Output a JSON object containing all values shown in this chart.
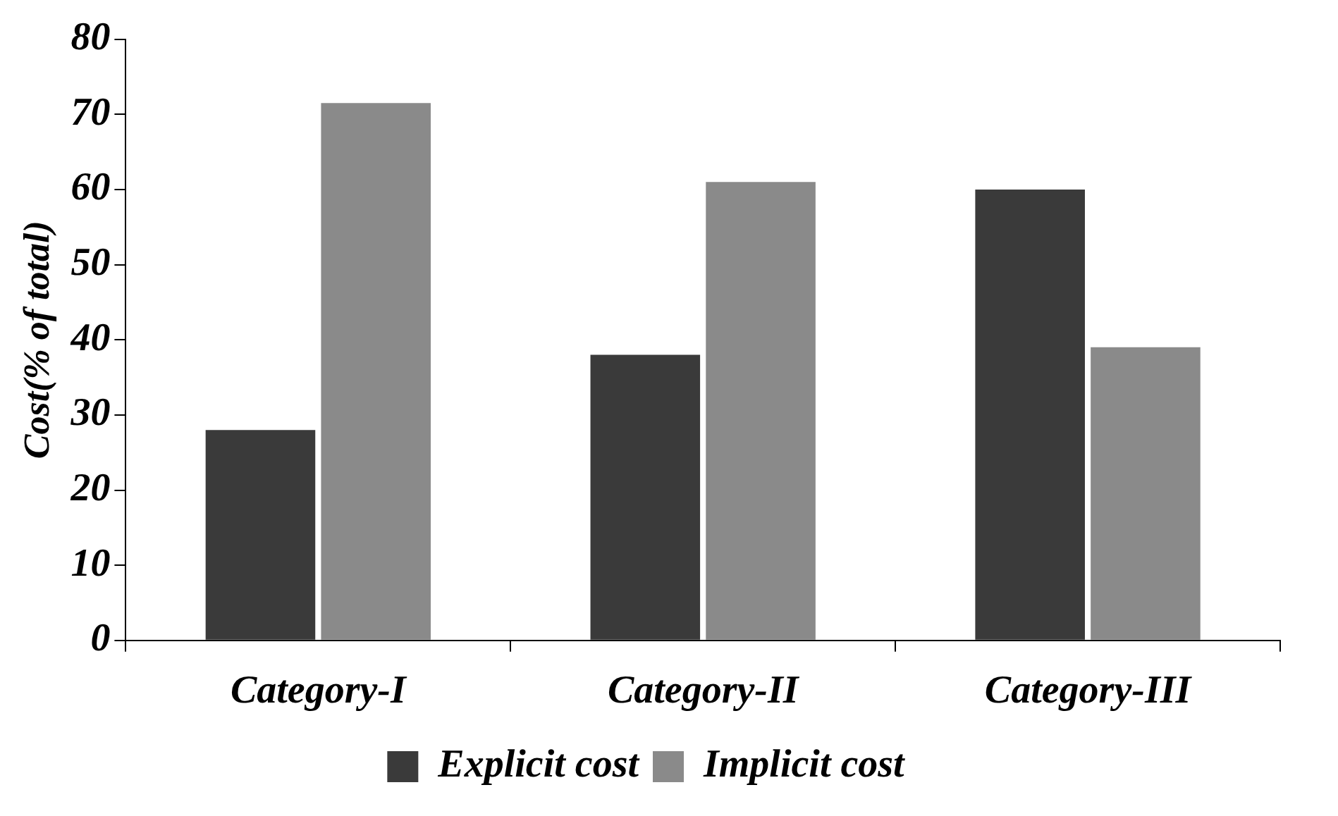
{
  "chart_data": {
    "type": "bar",
    "ylabel": "Cost(% of total)",
    "categories": [
      "Category-I",
      "Category-II",
      "Category-III"
    ],
    "series": [
      {
        "name": "Explicit cost",
        "color": "#3a3a3a",
        "values": [
          28,
          38,
          60
        ]
      },
      {
        "name": "Implicit cost",
        "color": "#8a8a8a",
        "values": [
          71.5,
          61,
          39
        ]
      }
    ],
    "ylim": [
      0,
      80
    ],
    "yticks": [
      0,
      10,
      20,
      30,
      40,
      50,
      60,
      70,
      80
    ],
    "grid": false,
    "legend": "bottom"
  }
}
